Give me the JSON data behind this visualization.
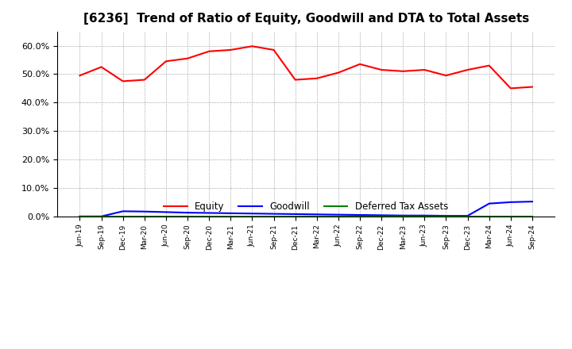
{
  "title": "[6236]  Trend of Ratio of Equity, Goodwill and DTA to Total Assets",
  "x_labels": [
    "Jun-19",
    "Sep-19",
    "Dec-19",
    "Mar-20",
    "Jun-20",
    "Sep-20",
    "Dec-20",
    "Mar-21",
    "Jun-21",
    "Sep-21",
    "Dec-21",
    "Mar-22",
    "Jun-22",
    "Sep-22",
    "Dec-22",
    "Mar-23",
    "Jun-23",
    "Sep-23",
    "Dec-23",
    "Mar-24",
    "Jun-24",
    "Sep-24"
  ],
  "equity": [
    49.5,
    52.5,
    47.5,
    48.0,
    54.5,
    55.5,
    58.0,
    58.5,
    59.8,
    58.5,
    48.0,
    48.5,
    50.5,
    53.5,
    51.5,
    51.0,
    51.5,
    49.5,
    51.5,
    53.0,
    45.0,
    45.5
  ],
  "goodwill": [
    0.0,
    0.0,
    1.8,
    1.7,
    1.5,
    1.3,
    1.2,
    1.1,
    1.0,
    0.9,
    0.8,
    0.7,
    0.6,
    0.5,
    0.4,
    0.3,
    0.3,
    0.2,
    0.2,
    4.5,
    5.0,
    5.2
  ],
  "dta": [
    0.0,
    0.0,
    0.0,
    0.0,
    0.0,
    0.0,
    0.0,
    0.0,
    0.0,
    0.0,
    0.0,
    0.0,
    0.0,
    0.0,
    0.0,
    0.0,
    0.0,
    0.0,
    0.0,
    0.0,
    0.0,
    0.0
  ],
  "equity_color": "#FF0000",
  "goodwill_color": "#0000FF",
  "dta_color": "#008000",
  "ylim": [
    0,
    65
  ],
  "yticks": [
    0,
    10,
    20,
    30,
    40,
    50,
    60
  ],
  "ytick_labels": [
    "0.0%",
    "10.0%",
    "20.0%",
    "30.0%",
    "40.0%",
    "50.0%",
    "60.0%"
  ],
  "background_color": "#FFFFFF",
  "grid_color": "#AAAAAA",
  "title_fontsize": 11,
  "legend_labels": [
    "Equity",
    "Goodwill",
    "Deferred Tax Assets"
  ]
}
